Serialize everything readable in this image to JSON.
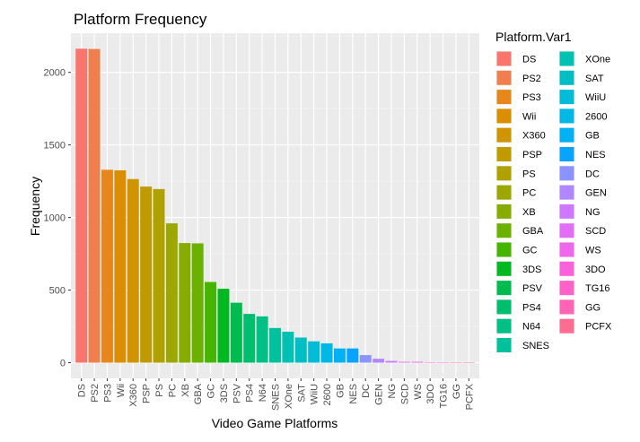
{
  "chart_data": {
    "type": "bar",
    "title": "Platform Frequency",
    "xlabel": "Video Game Platforms",
    "ylabel": "Frequency",
    "ylim": [
      -108,
      2270
    ],
    "yticks": [
      0,
      500,
      1000,
      1500,
      2000
    ],
    "grid": true,
    "legend": {
      "title": "Platform.Var1",
      "placement": "right"
    },
    "categories": [
      "DS",
      "PS2",
      "PS3",
      "Wii",
      "X360",
      "PSP",
      "PS",
      "PC",
      "XB",
      "GBA",
      "GC",
      "3DS",
      "PSV",
      "PS4",
      "N64",
      "SNES",
      "XOne",
      "SAT",
      "WiiU",
      "2600",
      "GB",
      "NES",
      "DC",
      "GEN",
      "NG",
      "SCD",
      "WS",
      "3DO",
      "TG16",
      "GG",
      "PCFX"
    ],
    "values": [
      2163,
      2161,
      1329,
      1325,
      1265,
      1213,
      1196,
      960,
      824,
      822,
      556,
      509,
      413,
      336,
      319,
      239,
      213,
      173,
      147,
      133,
      98,
      98,
      52,
      27,
      12,
      6,
      6,
      3,
      2,
      1,
      1
    ],
    "colors": [
      "#F8766D",
      "#F07F4F",
      "#E7861B",
      "#DB8E00",
      "#CF9400",
      "#C09B00",
      "#AFA100",
      "#9CA700",
      "#86AC00",
      "#6BB100",
      "#45B500",
      "#00B81F",
      "#00BB4E",
      "#00BE6C",
      "#00C085",
      "#00C19C",
      "#00C1B2",
      "#00BFC4",
      "#00BCD6",
      "#00B8E5",
      "#00B2F3",
      "#06A4FF",
      "#8B93FF",
      "#B186FF",
      "#CF78FF",
      "#E26EF7",
      "#EF67EB",
      "#FA62DB",
      "#FF61C9",
      "#FF64B4",
      "#FF6C92"
    ]
  }
}
